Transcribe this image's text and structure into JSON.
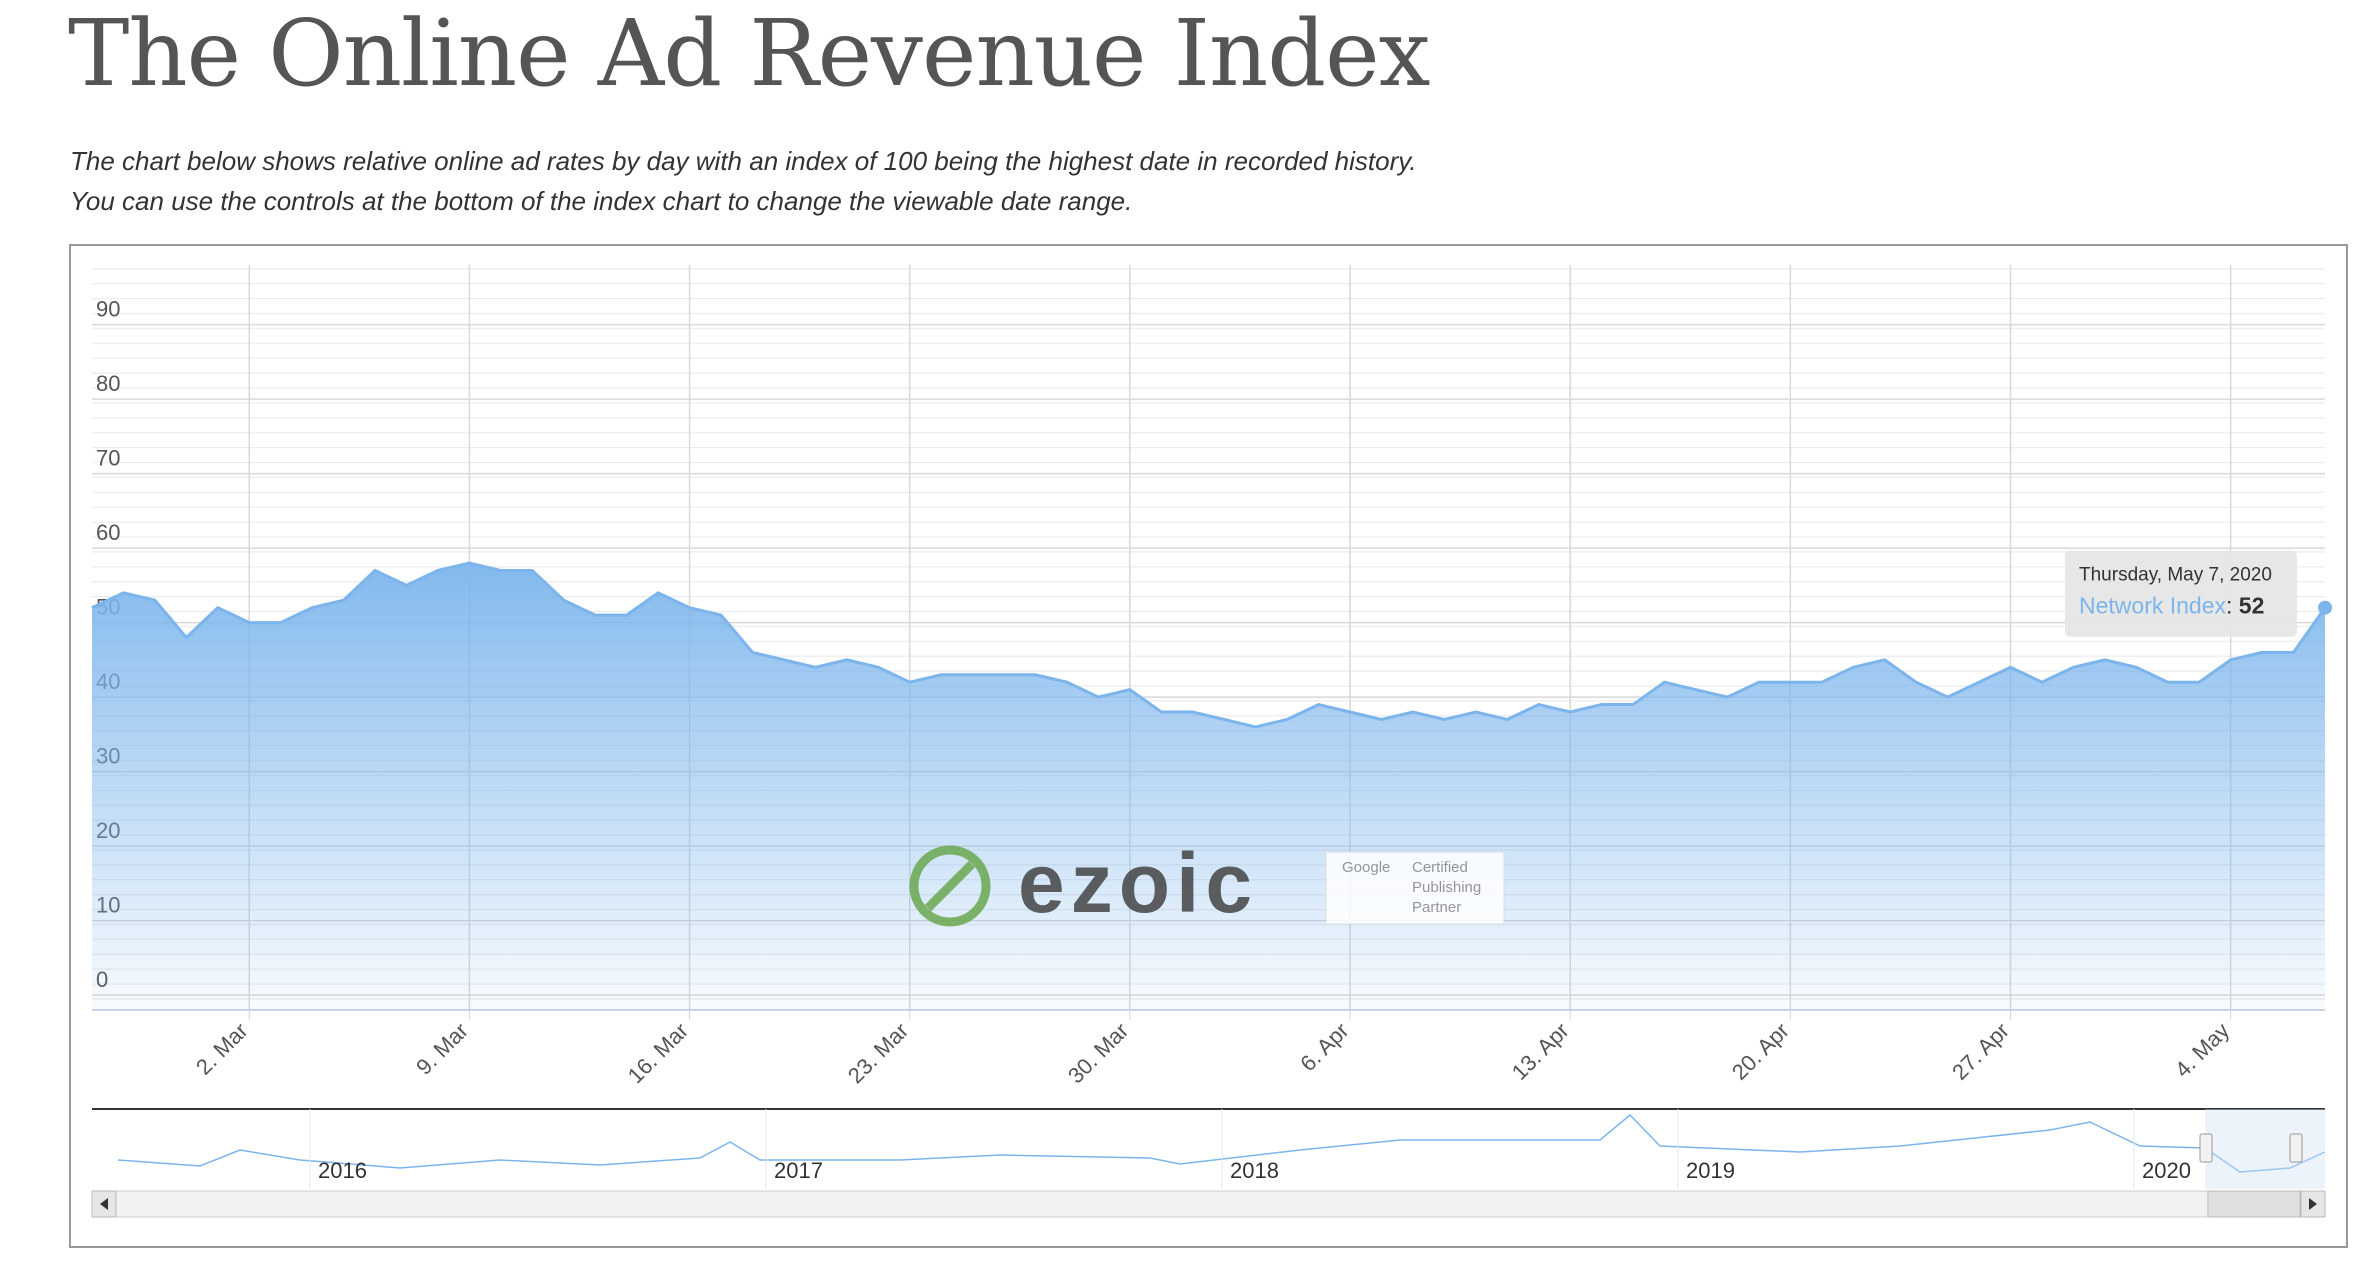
{
  "header": {
    "title": "The Online Ad Revenue Index",
    "description": [
      "The chart below shows relative online ad rates by day with an index of 100 being the highest date in recorded history.",
      "You can use the controls at the bottom of the index chart to change the viewable date range."
    ]
  },
  "chart_data": {
    "type": "area",
    "grid": true,
    "x": [
      "2020-02-26",
      "2020-02-27",
      "2020-02-28",
      "2020-02-29",
      "2020-03-01",
      "2020-03-02",
      "2020-03-03",
      "2020-03-04",
      "2020-03-05",
      "2020-03-06",
      "2020-03-07",
      "2020-03-08",
      "2020-03-09",
      "2020-03-10",
      "2020-03-11",
      "2020-03-12",
      "2020-03-13",
      "2020-03-14",
      "2020-03-15",
      "2020-03-16",
      "2020-03-17",
      "2020-03-18",
      "2020-03-19",
      "2020-03-20",
      "2020-03-21",
      "2020-03-22",
      "2020-03-23",
      "2020-03-24",
      "2020-03-25",
      "2020-03-26",
      "2020-03-27",
      "2020-03-28",
      "2020-03-29",
      "2020-03-30",
      "2020-03-31",
      "2020-04-01",
      "2020-04-02",
      "2020-04-03",
      "2020-04-04",
      "2020-04-05",
      "2020-04-06",
      "2020-04-07",
      "2020-04-08",
      "2020-04-09",
      "2020-04-10",
      "2020-04-11",
      "2020-04-12",
      "2020-04-13",
      "2020-04-14",
      "2020-04-15",
      "2020-04-16",
      "2020-04-17",
      "2020-04-18",
      "2020-04-19",
      "2020-04-20",
      "2020-04-21",
      "2020-04-22",
      "2020-04-23",
      "2020-04-24",
      "2020-04-25",
      "2020-04-26",
      "2020-04-27",
      "2020-04-28",
      "2020-04-29",
      "2020-04-30",
      "2020-05-01",
      "2020-05-02",
      "2020-05-03",
      "2020-05-04",
      "2020-05-05",
      "2020-05-06",
      "2020-05-07"
    ],
    "series": [
      {
        "name": "Network Index",
        "color": "#7cb5ec",
        "values": [
          52,
          54,
          53,
          48,
          52,
          50,
          50,
          52,
          53,
          57,
          55,
          57,
          58,
          57,
          57,
          53,
          51,
          51,
          54,
          52,
          51,
          46,
          45,
          44,
          45,
          44,
          42,
          43,
          43,
          43,
          43,
          42,
          40,
          41,
          38,
          38,
          37,
          36,
          37,
          39,
          38,
          37,
          38,
          37,
          38,
          37,
          39,
          38,
          39,
          39,
          42,
          41,
          40,
          42,
          42,
          42,
          44,
          45,
          42,
          40,
          42,
          44,
          42,
          44,
          45,
          44,
          42,
          42,
          45,
          46,
          46,
          52
        ]
      }
    ],
    "xlim": [
      "2020-02-26",
      "2020-05-07"
    ],
    "xticks": [
      {
        "value": "2020-03-02",
        "label": "2. Mar"
      },
      {
        "value": "2020-03-09",
        "label": "9. Mar"
      },
      {
        "value": "2020-03-16",
        "label": "16. Mar"
      },
      {
        "value": "2020-03-23",
        "label": "23. Mar"
      },
      {
        "value": "2020-03-30",
        "label": "30. Mar"
      },
      {
        "value": "2020-04-06",
        "label": "6. Apr"
      },
      {
        "value": "2020-04-13",
        "label": "13. Apr"
      },
      {
        "value": "2020-04-20",
        "label": "20. Apr"
      },
      {
        "value": "2020-04-27",
        "label": "27. Apr"
      },
      {
        "value": "2020-05-04",
        "label": "4. May"
      }
    ],
    "ylim": [
      -2,
      98
    ],
    "yticks": [
      0,
      10,
      20,
      30,
      40,
      50,
      60,
      70,
      80,
      90
    ],
    "tooltip": {
      "title": "Thursday, May 7, 2020",
      "separator": ": "
    },
    "navigator": {
      "labels": [
        "2016",
        "2017",
        "2018",
        "2019",
        "2020"
      ]
    },
    "watermark": {
      "logo": "ezoic",
      "badge": [
        "Google",
        "Certified",
        "Publishing",
        "Partner"
      ]
    }
  }
}
